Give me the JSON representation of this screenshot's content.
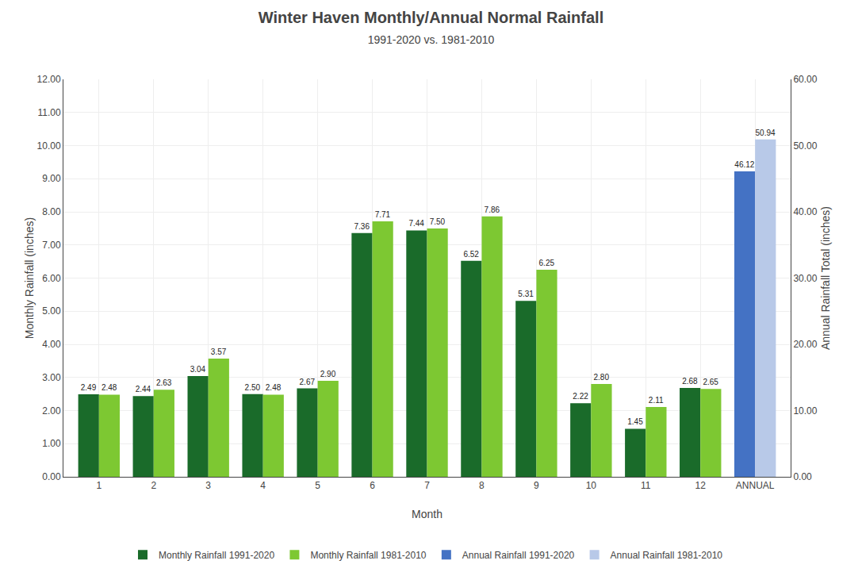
{
  "chart_data": {
    "type": "bar",
    "title": "Winter Haven Monthly/Annual Normal Rainfall",
    "subtitle": "1991-2020 vs. 1981-2010",
    "xlabel": "Month",
    "ylabel": "Monthly Rainfall (inches)",
    "y2label": "Annual Rainfall Total (inches)",
    "categories": [
      "1",
      "2",
      "3",
      "4",
      "5",
      "6",
      "7",
      "8",
      "9",
      "10",
      "11",
      "12",
      "ANNUAL"
    ],
    "series": [
      {
        "name": "Monthly Rainfall 1991-2020",
        "color": "#1a6b2a",
        "values": [
          2.49,
          2.44,
          3.04,
          2.5,
          2.67,
          7.36,
          7.44,
          6.52,
          5.31,
          2.22,
          1.45,
          2.68,
          null
        ],
        "value_labels": [
          "2.49",
          "2.44",
          "3.04",
          "2.50",
          "2.67",
          "7.36",
          "7.44",
          "6.52",
          "5.31",
          "2.22",
          "1.45",
          "2.68",
          null
        ]
      },
      {
        "name": "Monthly Rainfall 1981-2010",
        "color": "#7dc832",
        "values": [
          2.48,
          2.63,
          3.57,
          2.48,
          2.9,
          7.71,
          7.5,
          7.86,
          6.25,
          2.8,
          2.11,
          2.65,
          null
        ],
        "value_labels": [
          "2.48",
          "2.63",
          "3.57",
          "2.48",
          "2.90",
          "7.71",
          "7.50",
          "7.86",
          "6.25",
          "2.80",
          "2.11",
          "2.65",
          null
        ]
      },
      {
        "name": "Annual Rainfall 1991-2020",
        "color": "#4472c4",
        "axis": "y2",
        "values": [
          null,
          null,
          null,
          null,
          null,
          null,
          null,
          null,
          null,
          null,
          null,
          null,
          46.12
        ],
        "value_labels": [
          null,
          null,
          null,
          null,
          null,
          null,
          null,
          null,
          null,
          null,
          null,
          null,
          "46.12"
        ]
      },
      {
        "name": "Annual Rainfall 1981-2010",
        "color": "#b8c9e8",
        "axis": "y2",
        "values": [
          null,
          null,
          null,
          null,
          null,
          null,
          null,
          null,
          null,
          null,
          null,
          null,
          50.94
        ],
        "value_labels": [
          null,
          null,
          null,
          null,
          null,
          null,
          null,
          null,
          null,
          null,
          null,
          null,
          "50.94"
        ]
      }
    ],
    "ylim": [
      0.0,
      12.0
    ],
    "yticks": [
      {
        "value": 0,
        "label": "0.00"
      },
      {
        "value": 1,
        "label": "1.00"
      },
      {
        "value": 2,
        "label": "2.00"
      },
      {
        "value": 3,
        "label": "3.00"
      },
      {
        "value": 4,
        "label": "4.00"
      },
      {
        "value": 5,
        "label": "5.00"
      },
      {
        "value": 6,
        "label": "6.00"
      },
      {
        "value": 7,
        "label": "7.00"
      },
      {
        "value": 8,
        "label": "8.00"
      },
      {
        "value": 9,
        "label": "9.00"
      },
      {
        "value": 10,
        "label": "10.00"
      },
      {
        "value": 11,
        "label": "11.00"
      },
      {
        "value": 12,
        "label": "12.00"
      }
    ],
    "y2lim": [
      0.0,
      60.0
    ],
    "y2ticks": [
      {
        "value": 0,
        "label": "0.00"
      },
      {
        "value": 10,
        "label": "10.00"
      },
      {
        "value": 20,
        "label": "20.00"
      },
      {
        "value": 30,
        "label": "30.00"
      },
      {
        "value": 40,
        "label": "40.00"
      },
      {
        "value": 50,
        "label": "50.00"
      },
      {
        "value": 60,
        "label": "60.00"
      }
    ],
    "grid": true,
    "legend": "bottom",
    "data_labels": true
  }
}
